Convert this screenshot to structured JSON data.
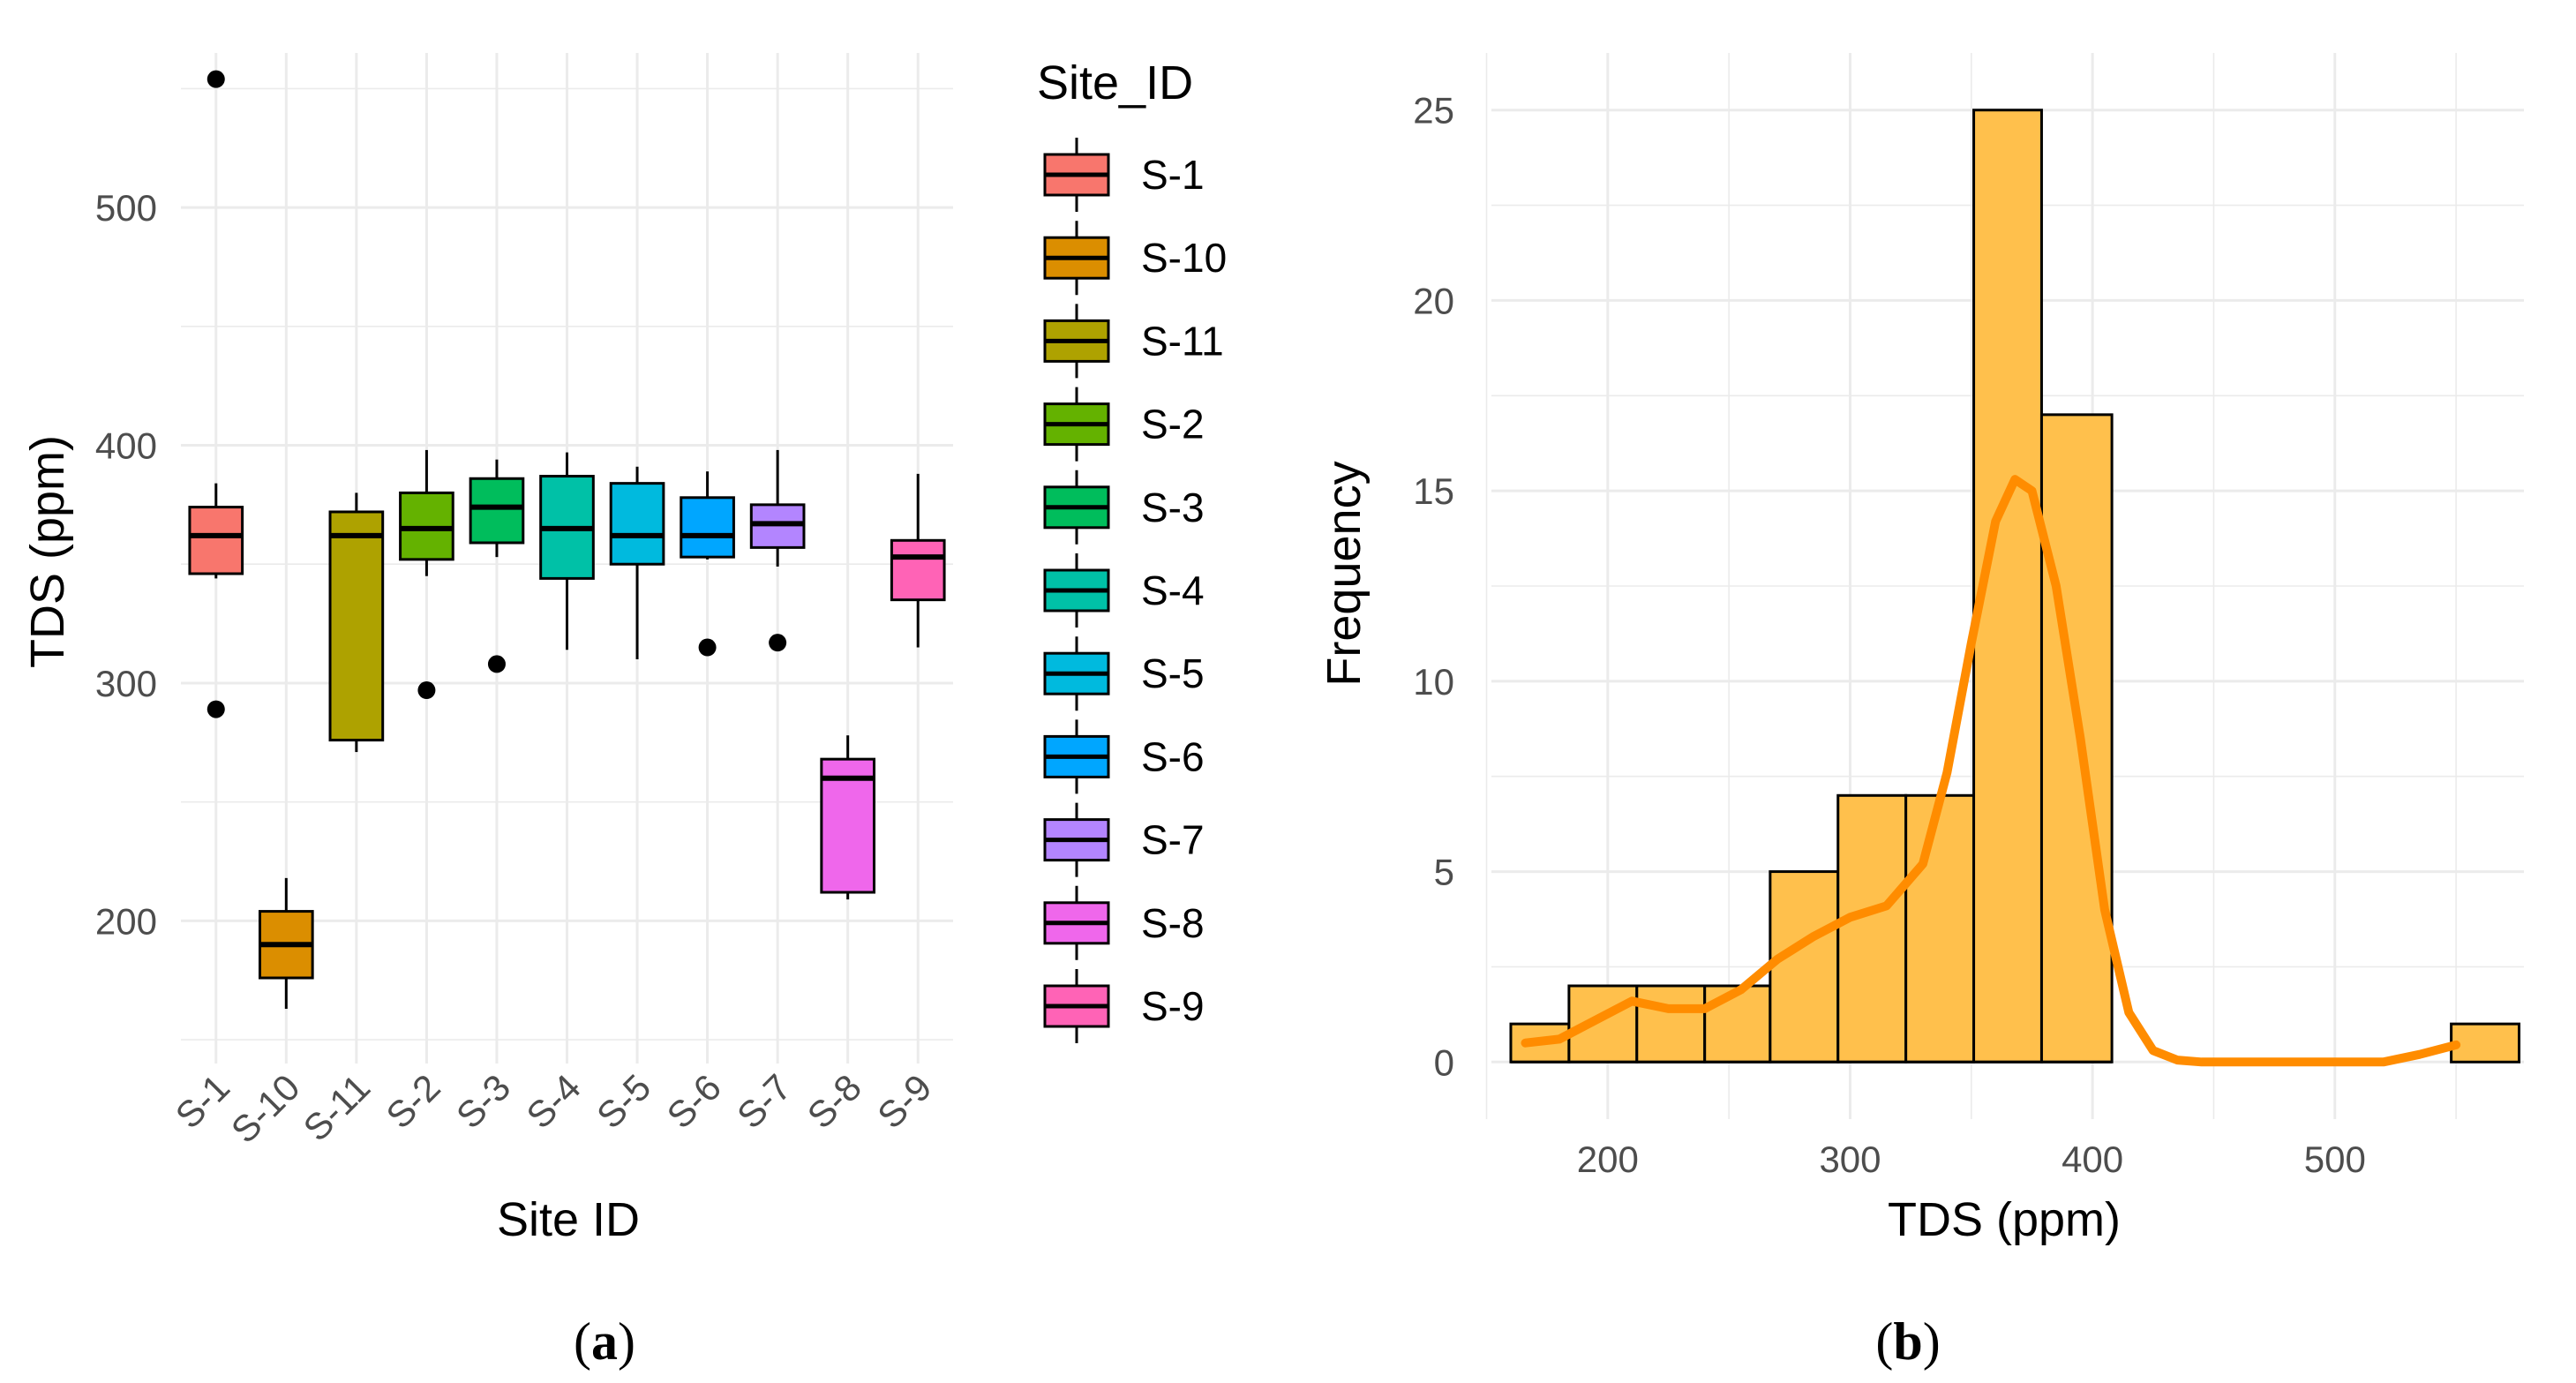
{
  "panels": {
    "a": {
      "label_open": "(",
      "label_letter": "a",
      "label_close": ")"
    },
    "b": {
      "label_open": "(",
      "label_letter": "b",
      "label_close": ")"
    }
  },
  "chart_data": [
    {
      "type": "box",
      "title": "",
      "xlabel": "Site ID",
      "ylabel": "TDS (ppm)",
      "ylim": [
        140,
        565
      ],
      "yticks": [
        200,
        300,
        400,
        500
      ],
      "legend_title": "Site_ID",
      "legend_position": "right",
      "grid": true,
      "categories": [
        "S-1",
        "S-10",
        "S-11",
        "S-2",
        "S-3",
        "S-4",
        "S-5",
        "S-6",
        "S-7",
        "S-8",
        "S-9"
      ],
      "colors": [
        "#F8766D",
        "#DB8E00",
        "#AEA200",
        "#64B200",
        "#00BD5C",
        "#00C1A7",
        "#00BADE",
        "#00A6FF",
        "#B385FF",
        "#EF67EB",
        "#FF63B6"
      ],
      "boxes": [
        {
          "site": "S-1",
          "whisker_low": 344,
          "q1": 346,
          "median": 362,
          "q3": 374,
          "whisker_high": 384,
          "outliers": [
            289,
            554
          ]
        },
        {
          "site": "S-10",
          "whisker_low": 163,
          "q1": 176,
          "median": 190,
          "q3": 204,
          "whisker_high": 218,
          "outliers": []
        },
        {
          "site": "S-11",
          "whisker_low": 271,
          "q1": 276,
          "median": 362,
          "q3": 372,
          "whisker_high": 380,
          "outliers": []
        },
        {
          "site": "S-2",
          "whisker_low": 345,
          "q1": 352,
          "median": 365,
          "q3": 380,
          "whisker_high": 398,
          "outliers": [
            297
          ]
        },
        {
          "site": "S-3",
          "whisker_low": 353,
          "q1": 359,
          "median": 374,
          "q3": 386,
          "whisker_high": 394,
          "outliers": [
            308
          ]
        },
        {
          "site": "S-4",
          "whisker_low": 314,
          "q1": 344,
          "median": 365,
          "q3": 387,
          "whisker_high": 397,
          "outliers": []
        },
        {
          "site": "S-5",
          "whisker_low": 310,
          "q1": 350,
          "median": 362,
          "q3": 384,
          "whisker_high": 391,
          "outliers": []
        },
        {
          "site": "S-6",
          "whisker_low": 352,
          "q1": 353,
          "median": 362,
          "q3": 378,
          "whisker_high": 389,
          "outliers": [
            315
          ]
        },
        {
          "site": "S-7",
          "whisker_low": 349,
          "q1": 357,
          "median": 367,
          "q3": 375,
          "whisker_high": 398,
          "outliers": [
            317
          ]
        },
        {
          "site": "S-8",
          "whisker_low": 209,
          "q1": 212,
          "median": 260,
          "q3": 268,
          "whisker_high": 278,
          "outliers": []
        },
        {
          "site": "S-9",
          "whisker_low": 315,
          "q1": 335,
          "median": 353,
          "q3": 360,
          "whisker_high": 388,
          "outliers": []
        }
      ]
    },
    {
      "type": "histogram",
      "title": "",
      "xlabel": "TDS (ppm)",
      "ylabel": "Frequency",
      "xlim": [
        152,
        578
      ],
      "ylim": [
        -1.5,
        26.5
      ],
      "xticks": [
        200,
        300,
        400,
        500
      ],
      "yticks": [
        0,
        5,
        10,
        15,
        20,
        25
      ],
      "grid": true,
      "bar_color": "#FFC04C",
      "bins": [
        {
          "x0": 160,
          "x1": 184,
          "count": 1
        },
        {
          "x0": 184,
          "x1": 212,
          "count": 2
        },
        {
          "x0": 212,
          "x1": 240,
          "count": 2
        },
        {
          "x0": 240,
          "x1": 267,
          "count": 2
        },
        {
          "x0": 267,
          "x1": 295,
          "count": 5
        },
        {
          "x0": 295,
          "x1": 323,
          "count": 7
        },
        {
          "x0": 323,
          "x1": 351,
          "count": 7
        },
        {
          "x0": 351,
          "x1": 379,
          "count": 25
        },
        {
          "x0": 379,
          "x1": 408,
          "count": 17
        },
        {
          "x0": 548,
          "x1": 576,
          "count": 1
        }
      ],
      "density_line": {
        "color": "#FF8C00",
        "x": [
          166,
          180,
          195,
          210,
          225,
          240,
          255,
          270,
          285,
          300,
          315,
          330,
          340,
          350,
          360,
          368,
          375,
          385,
          395,
          405,
          415,
          425,
          435,
          445,
          460,
          480,
          500,
          520,
          535,
          550
        ],
        "y": [
          0.5,
          0.6,
          1.1,
          1.6,
          1.4,
          1.4,
          1.9,
          2.7,
          3.3,
          3.8,
          4.1,
          5.2,
          7.6,
          11.0,
          14.2,
          15.3,
          15.0,
          12.5,
          8.5,
          4.0,
          1.3,
          0.3,
          0.05,
          0.0,
          0.0,
          0.0,
          0.0,
          0.0,
          0.2,
          0.45
        ]
      }
    }
  ]
}
